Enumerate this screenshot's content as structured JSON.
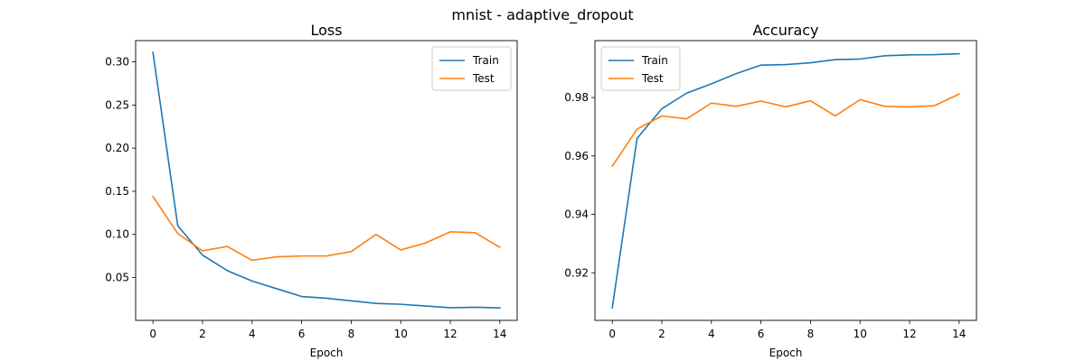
{
  "figure_title": "mnist - adaptive_dropout",
  "colors": {
    "train": "#1f77b4",
    "test": "#ff7f0e"
  },
  "chart_data": [
    {
      "type": "line",
      "title": "Loss",
      "xlabel": "Epoch",
      "ylabel": "",
      "x": [
        0,
        1,
        2,
        3,
        4,
        5,
        6,
        7,
        8,
        9,
        10,
        11,
        12,
        13,
        14
      ],
      "xlim": [
        -0.7,
        14.7
      ],
      "ylim": [
        0.0003,
        0.3247
      ],
      "xticks": [
        0,
        2,
        4,
        6,
        8,
        10,
        12,
        14
      ],
      "yticks": [
        0.05,
        0.1,
        0.15,
        0.2,
        0.25,
        0.3
      ],
      "ytick_labels": [
        "0.05",
        "0.10",
        "0.15",
        "0.20",
        "0.25",
        "0.30"
      ],
      "grid": false,
      "legend": "top-right",
      "series": [
        {
          "name": "Train",
          "color": "#1f77b4",
          "values": [
            0.311,
            0.11,
            0.076,
            0.058,
            0.046,
            0.037,
            0.028,
            0.026,
            0.023,
            0.02,
            0.019,
            0.017,
            0.015,
            0.0155,
            0.0148
          ]
        },
        {
          "name": "Test",
          "color": "#ff7f0e",
          "values": [
            0.144,
            0.101,
            0.081,
            0.086,
            0.07,
            0.074,
            0.075,
            0.075,
            0.08,
            0.1,
            0.082,
            0.09,
            0.103,
            0.102,
            0.085
          ]
        }
      ]
    },
    {
      "type": "line",
      "title": "Accuracy",
      "xlabel": "Epoch",
      "ylabel": "",
      "x": [
        0,
        1,
        2,
        3,
        4,
        5,
        6,
        7,
        8,
        9,
        10,
        11,
        12,
        13,
        14
      ],
      "xlim": [
        -0.7,
        14.7
      ],
      "ylim": [
        0.9037,
        0.9995
      ],
      "xticks": [
        0,
        2,
        4,
        6,
        8,
        10,
        12,
        14
      ],
      "yticks": [
        0.92,
        0.94,
        0.96,
        0.98
      ],
      "ytick_labels": [
        "0.92",
        "0.94",
        "0.96",
        "0.98"
      ],
      "grid": false,
      "legend": "top-left",
      "series": [
        {
          "name": "Train",
          "color": "#1f77b4",
          "values": [
            0.908,
            0.966,
            0.9762,
            0.9815,
            0.9847,
            0.9882,
            0.9911,
            0.9913,
            0.9919,
            0.993,
            0.9932,
            0.9943,
            0.9946,
            0.9947,
            0.995
          ]
        },
        {
          "name": "Test",
          "color": "#ff7f0e",
          "values": [
            0.9565,
            0.9692,
            0.9737,
            0.9727,
            0.9781,
            0.977,
            0.9788,
            0.9768,
            0.9789,
            0.9737,
            0.9793,
            0.977,
            0.9768,
            0.9772,
            0.9812
          ]
        }
      ]
    }
  ]
}
